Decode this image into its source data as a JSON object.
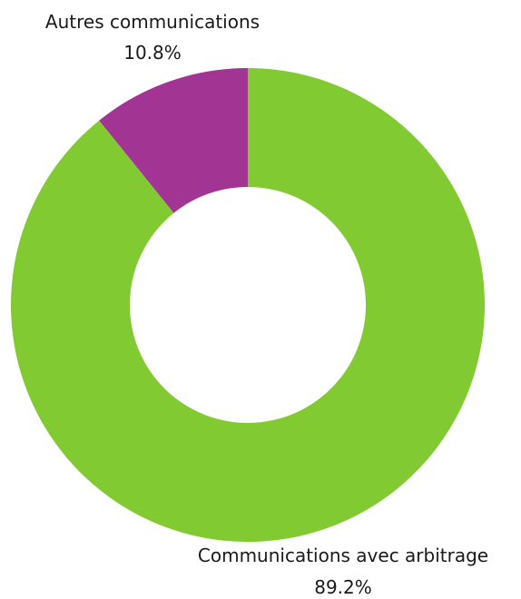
{
  "chart_data": {
    "type": "pie",
    "donut": true,
    "title": "",
    "slices": [
      {
        "label": "Autres communications",
        "value": 10.8,
        "value_label": "10.8%",
        "color": "#a23593"
      },
      {
        "label": "Communications avec arbitrage",
        "value": 89.2,
        "value_label": "89.2%",
        "color": "#82ca32"
      }
    ]
  }
}
